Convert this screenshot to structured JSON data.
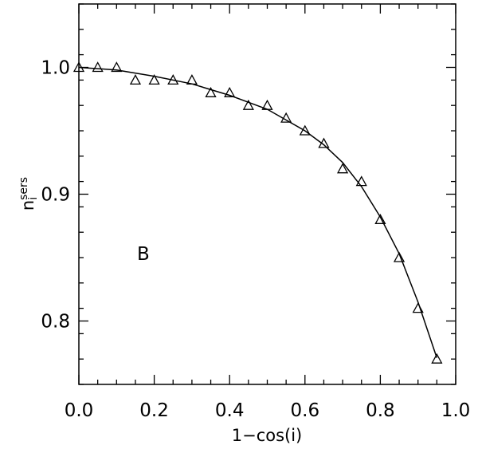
{
  "chart_data": {
    "type": "scatter",
    "xlabel": "1−cos(i)",
    "ylabel": {
      "base": "n",
      "sub": "i",
      "sup": "sers"
    },
    "annotation": "B",
    "xlim": [
      0.0,
      1.0
    ],
    "ylim": [
      0.75,
      1.05
    ],
    "x_ticks": [
      "0.0",
      "0.2",
      "0.4",
      "0.6",
      "0.8",
      "1.0"
    ],
    "y_ticks": [
      "0.8",
      "0.9",
      "1.0"
    ],
    "grid": false,
    "legend": "none",
    "series": [
      {
        "marker": "open-triangle",
        "x": [
          0.0,
          0.05,
          0.1,
          0.15,
          0.2,
          0.25,
          0.3,
          0.35,
          0.4,
          0.45,
          0.5,
          0.55,
          0.6,
          0.65,
          0.7,
          0.75,
          0.8,
          0.85,
          0.9,
          0.95
        ],
        "y": [
          1.0,
          1.0,
          1.0,
          0.99,
          0.99,
          0.99,
          0.99,
          0.98,
          0.98,
          0.97,
          0.97,
          0.96,
          0.95,
          0.94,
          0.92,
          0.91,
          0.88,
          0.85,
          0.81,
          0.77
        ]
      },
      {
        "marker": "line",
        "x": [
          0.0,
          0.1,
          0.2,
          0.3,
          0.4,
          0.5,
          0.6,
          0.65,
          0.7,
          0.75,
          0.8,
          0.85,
          0.9,
          0.95
        ],
        "y": [
          1.0,
          0.998,
          0.993,
          0.987,
          0.978,
          0.967,
          0.95,
          0.939,
          0.925,
          0.906,
          0.882,
          0.853,
          0.815,
          0.771
        ]
      }
    ],
    "colors": {
      "ink": "#000000",
      "background": "#ffffff"
    }
  }
}
